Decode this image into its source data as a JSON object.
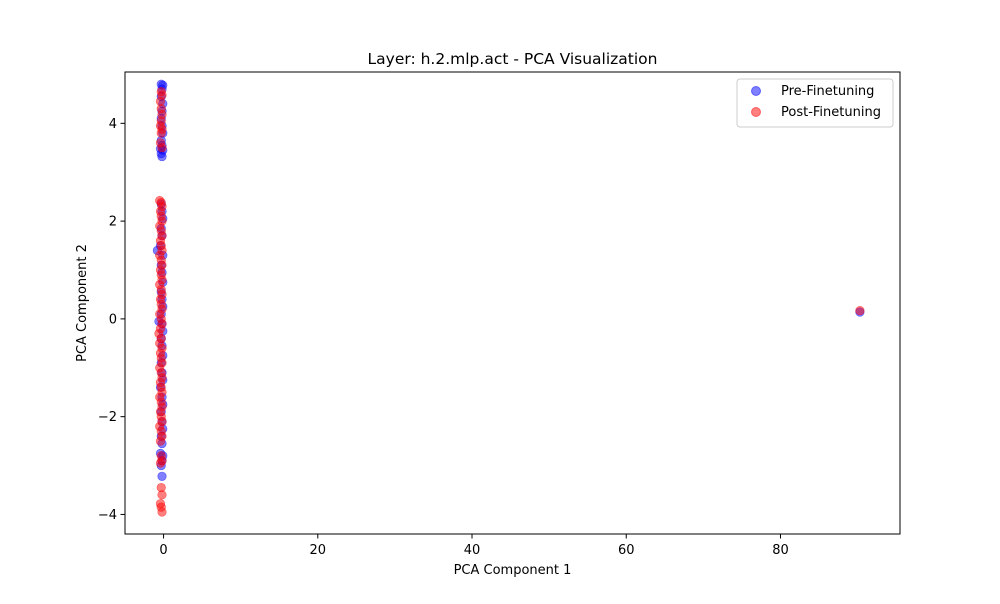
{
  "chart_data": {
    "type": "scatter",
    "title": "Layer: h.2.mlp.act - PCA Visualization",
    "xlabel": "PCA Component 1",
    "ylabel": "PCA Component 2",
    "xlim": [
      -5,
      95.5
    ],
    "ylim": [
      -4.4,
      5.05
    ],
    "xticks": [
      0,
      20,
      40,
      60,
      80
    ],
    "yticks": [
      -4,
      -2,
      0,
      2,
      4
    ],
    "xtick_labels": [
      "0",
      "20",
      "40",
      "60",
      "80"
    ],
    "ytick_labels": [
      "−4",
      "−2",
      "0",
      "2",
      "4"
    ],
    "grid": false,
    "legend": {
      "position": "top-right"
    },
    "series": [
      {
        "name": "Pre-Finetuning",
        "color": "#0000ff",
        "alpha": 0.5,
        "points": [
          [
            -0.3,
            4.8
          ],
          [
            -0.1,
            4.78
          ],
          [
            -0.2,
            4.7
          ],
          [
            -0.3,
            4.55
          ],
          [
            -0.1,
            4.4
          ],
          [
            -0.2,
            4.25
          ],
          [
            -0.3,
            4.1
          ],
          [
            -0.2,
            3.95
          ],
          [
            -0.1,
            3.8
          ],
          [
            -0.3,
            3.65
          ],
          [
            -0.2,
            3.55
          ],
          [
            -0.4,
            3.48
          ],
          [
            -0.1,
            3.45
          ],
          [
            -0.3,
            3.38
          ],
          [
            -0.2,
            3.32
          ],
          [
            -0.3,
            2.35
          ],
          [
            -0.2,
            2.2
          ],
          [
            -0.1,
            2.05
          ],
          [
            -0.3,
            1.85
          ],
          [
            -0.2,
            1.7
          ],
          [
            -0.4,
            1.5
          ],
          [
            -0.8,
            1.4
          ],
          [
            -0.1,
            1.3
          ],
          [
            -0.3,
            1.1
          ],
          [
            -0.2,
            0.95
          ],
          [
            -0.1,
            0.75
          ],
          [
            -0.3,
            0.55
          ],
          [
            -0.2,
            0.4
          ],
          [
            -0.1,
            0.25
          ],
          [
            -0.3,
            0.1
          ],
          [
            -0.6,
            -0.05
          ],
          [
            -0.2,
            -0.1
          ],
          [
            -0.1,
            -0.25
          ],
          [
            -0.3,
            -0.4
          ],
          [
            -0.2,
            -0.55
          ],
          [
            -0.1,
            -0.75
          ],
          [
            -0.3,
            -0.9
          ],
          [
            -0.2,
            -1.1
          ],
          [
            -0.1,
            -1.25
          ],
          [
            -0.4,
            -1.4
          ],
          [
            -0.2,
            -1.6
          ],
          [
            -0.1,
            -1.75
          ],
          [
            -0.3,
            -1.9
          ],
          [
            -0.2,
            -2.1
          ],
          [
            -0.1,
            -2.25
          ],
          [
            -0.3,
            -2.4
          ],
          [
            -0.2,
            -2.55
          ],
          [
            -0.4,
            -2.75
          ],
          [
            -0.1,
            -2.8
          ],
          [
            -0.2,
            -2.9
          ],
          [
            -0.3,
            -3.0
          ],
          [
            -0.2,
            -3.22
          ],
          [
            90.3,
            0.14
          ]
        ]
      },
      {
        "name": "Post-Finetuning",
        "color": "#ff0000",
        "alpha": 0.5,
        "points": [
          [
            -0.3,
            4.65
          ],
          [
            -0.2,
            4.58
          ],
          [
            -0.4,
            4.45
          ],
          [
            -0.3,
            4.3
          ],
          [
            -0.2,
            4.18
          ],
          [
            -0.3,
            4.05
          ],
          [
            -0.4,
            3.95
          ],
          [
            -0.2,
            3.88
          ],
          [
            -0.3,
            3.8
          ],
          [
            -0.4,
            3.6
          ],
          [
            -0.2,
            3.5
          ],
          [
            -0.5,
            2.42
          ],
          [
            -0.3,
            2.38
          ],
          [
            -0.2,
            2.3
          ],
          [
            -0.4,
            2.2
          ],
          [
            -0.3,
            2.1
          ],
          [
            -0.2,
            2.0
          ],
          [
            -0.5,
            1.9
          ],
          [
            -0.3,
            1.8
          ],
          [
            -0.2,
            1.7
          ],
          [
            -0.4,
            1.6
          ],
          [
            -0.3,
            1.5
          ],
          [
            -0.2,
            1.4
          ],
          [
            -0.5,
            1.3
          ],
          [
            -0.3,
            1.2
          ],
          [
            -0.2,
            1.1
          ],
          [
            -0.4,
            1.0
          ],
          [
            -0.3,
            0.9
          ],
          [
            -0.2,
            0.8
          ],
          [
            -0.5,
            0.7
          ],
          [
            -0.3,
            0.6
          ],
          [
            -0.2,
            0.5
          ],
          [
            -0.4,
            0.4
          ],
          [
            -0.3,
            0.3
          ],
          [
            -0.2,
            0.2
          ],
          [
            -0.5,
            0.1
          ],
          [
            -0.3,
            0.0
          ],
          [
            -0.2,
            -0.1
          ],
          [
            -0.4,
            -0.2
          ],
          [
            -0.6,
            -0.3
          ],
          [
            -0.3,
            -0.4
          ],
          [
            -0.5,
            -0.5
          ],
          [
            -0.2,
            -0.6
          ],
          [
            -0.4,
            -0.7
          ],
          [
            -0.3,
            -0.8
          ],
          [
            -0.2,
            -0.9
          ],
          [
            -0.5,
            -1.0
          ],
          [
            -0.3,
            -1.1
          ],
          [
            -0.2,
            -1.2
          ],
          [
            -0.4,
            -1.3
          ],
          [
            -0.3,
            -1.4
          ],
          [
            -0.2,
            -1.5
          ],
          [
            -0.5,
            -1.6
          ],
          [
            -0.3,
            -1.7
          ],
          [
            -0.2,
            -1.8
          ],
          [
            -0.4,
            -1.9
          ],
          [
            -0.3,
            -2.0
          ],
          [
            -0.2,
            -2.1
          ],
          [
            -0.5,
            -2.2
          ],
          [
            -0.3,
            -2.3
          ],
          [
            -0.2,
            -2.4
          ],
          [
            -0.4,
            -2.5
          ],
          [
            -0.3,
            -2.8
          ],
          [
            -0.2,
            -2.9
          ],
          [
            -0.4,
            -2.95
          ],
          [
            -0.3,
            -3.45
          ],
          [
            -0.2,
            -3.6
          ],
          [
            -0.4,
            -3.78
          ],
          [
            -0.3,
            -3.85
          ],
          [
            -0.2,
            -3.95
          ],
          [
            90.3,
            0.17
          ]
        ]
      }
    ]
  }
}
